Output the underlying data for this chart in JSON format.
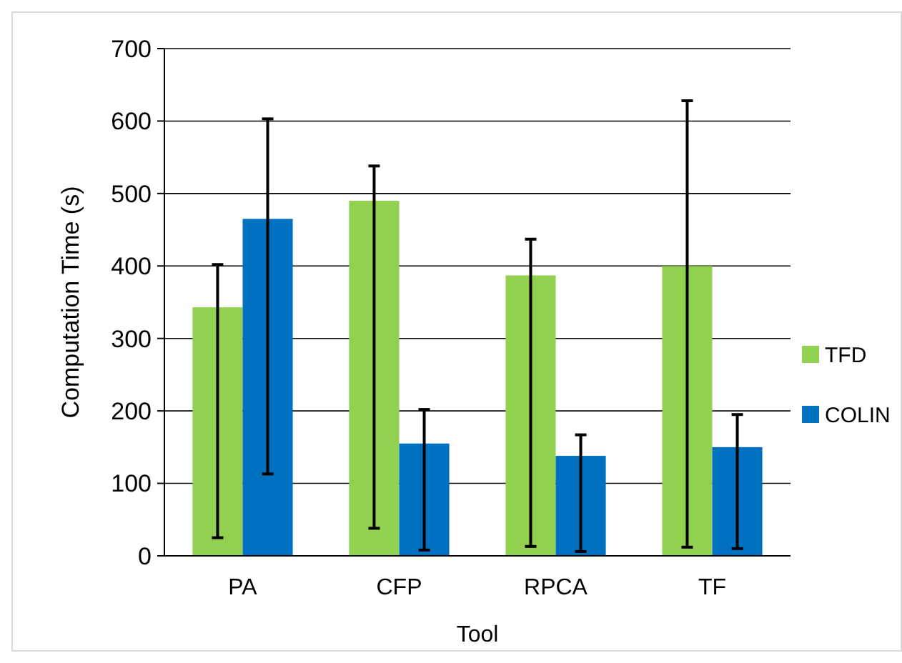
{
  "chart_data": {
    "type": "bar",
    "xlabel": "Tool",
    "ylabel": "Computation Time (s)",
    "categories": [
      "PA",
      "CFP",
      "RPCA",
      "TF"
    ],
    "series": [
      {
        "name": "TFD",
        "color": "#92d050",
        "values": [
          343,
          490,
          387,
          400
        ],
        "errors": [
          [
            25,
            402
          ],
          [
            38,
            538
          ],
          [
            13,
            437
          ],
          [
            12,
            628
          ]
        ]
      },
      {
        "name": "COLIN",
        "color": "#0070c0",
        "values": [
          465,
          155,
          138,
          150
        ],
        "errors": [
          [
            113,
            603
          ],
          [
            8,
            202
          ],
          [
            6,
            167
          ],
          [
            10,
            195
          ]
        ]
      }
    ],
    "ylim": [
      0,
      700
    ],
    "yticks": [
      0,
      100,
      200,
      300,
      400,
      500,
      600,
      700
    ],
    "grid": "y",
    "legend": "right"
  }
}
